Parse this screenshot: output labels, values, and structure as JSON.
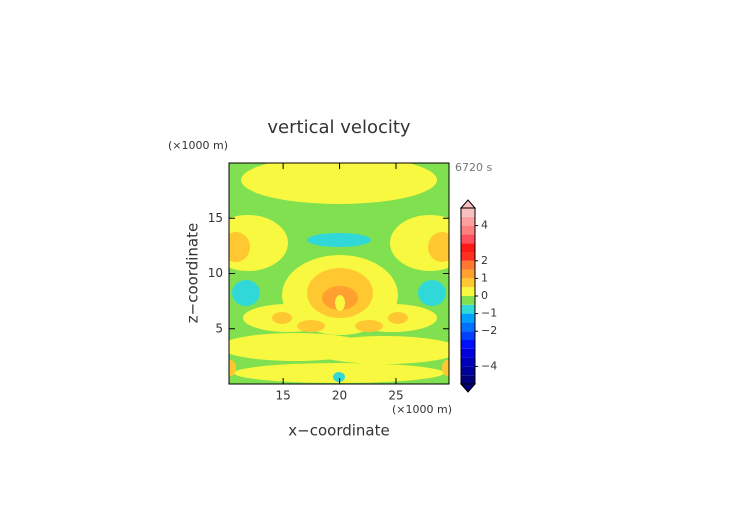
{
  "chart_data": {
    "type": "contour",
    "title": "vertical velocity",
    "y_unit": "(×1000 m)",
    "x_unit": "(×1000 m)",
    "time_label": "6720 s",
    "xlabel": "x−coordinate",
    "ylabel": "z−coordinate",
    "xlim": [
      10.2,
      29.7
    ],
    "ylim": [
      0,
      20
    ],
    "xticks": [
      15,
      20,
      25
    ],
    "yticks": [
      5,
      10,
      15
    ],
    "levels": [
      -5,
      -4.5,
      -4,
      -3.5,
      -3,
      -2.5,
      -2,
      -1.5,
      -1,
      -0.5,
      0,
      0.5,
      1,
      1.5,
      2,
      2.5,
      3,
      3.5,
      4,
      4.5,
      5
    ],
    "colors": [
      "#00007a",
      "#00009a",
      "#0000bb",
      "#0000dd",
      "#0010ff",
      "#0040ff",
      "#0070ff",
      "#00a0ff",
      "#30d8d8",
      "#80e050",
      "#f8f840",
      "#ffc830",
      "#ffa030",
      "#ff7830",
      "#ff3020",
      "#ff1818",
      "#ff5060",
      "#ff8080",
      "#ffa0a0",
      "#f8c0c0"
    ],
    "colorbar_ticks": [
      {
        "value": -4,
        "label": "−4"
      },
      {
        "value": -2,
        "label": "−2"
      },
      {
        "value": -1,
        "label": "−1"
      },
      0,
      1,
      2,
      4
    ]
  }
}
